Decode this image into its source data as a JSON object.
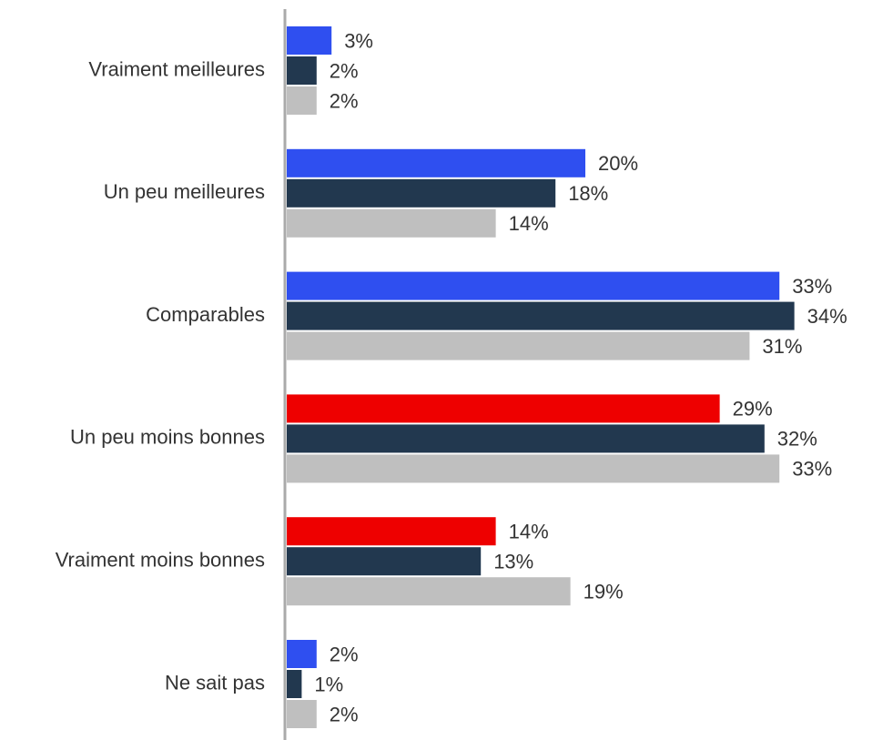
{
  "chart_data": {
    "type": "hbar",
    "categories": [
      "Vraiment meilleures",
      "Un peu meilleures",
      "Comparables",
      "Un peu moins bonnes",
      "Vraiment moins bonnes",
      "Ne sait pas"
    ],
    "series": [
      {
        "colors": [
          "#2f4ff0",
          "#2f4ff0",
          "#2f4ff0",
          "#ee0000",
          "#ee0000",
          "#2f4ff0"
        ],
        "values": [
          3,
          20,
          33,
          29,
          14,
          2
        ],
        "value_labels": [
          "3%",
          "20%",
          "33%",
          "29%",
          "14%",
          "2%"
        ]
      },
      {
        "color": "#22384f",
        "values": [
          2,
          18,
          34,
          32,
          13,
          1
        ],
        "value_labels": [
          "2%",
          "18%",
          "34%",
          "32%",
          "13%",
          "1%"
        ]
      },
      {
        "color": "#bfbfbf",
        "values": [
          2,
          14,
          31,
          33,
          19,
          2
        ],
        "value_labels": [
          "2%",
          "14%",
          "31%",
          "33%",
          "19%",
          "2%"
        ]
      }
    ],
    "xlim": [
      0,
      35
    ]
  }
}
